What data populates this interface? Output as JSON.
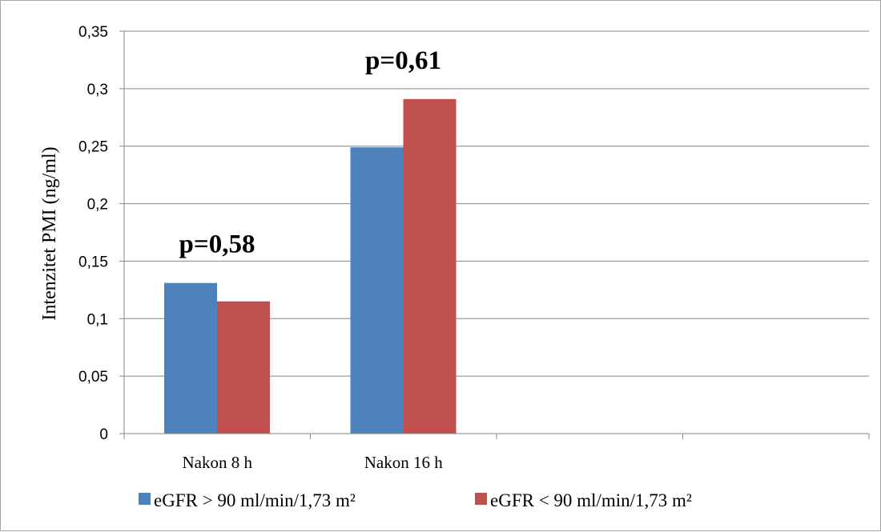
{
  "chart_data": {
    "type": "bar",
    "categories": [
      "Nakon 8 h",
      "Nakon 16 h",
      "",
      ""
    ],
    "series": [
      {
        "name": "eGFR > 90 ml/min/1,73 m²",
        "color": "#4f81bd",
        "values": [
          0.131,
          0.249,
          null,
          null
        ]
      },
      {
        "name": "eGFR < 90 ml/min/1,73 m²",
        "color": "#c0504d",
        "values": [
          0.115,
          0.291,
          null,
          null
        ]
      }
    ],
    "title": "",
    "xlabel": "",
    "ylabel": "Intenzitet PMI (ng/ml)",
    "ylim": [
      0,
      0.35
    ],
    "yticks": [
      0,
      0.05,
      0.1,
      0.15,
      0.2,
      0.25,
      0.3,
      0.35
    ],
    "ytick_labels": [
      "0",
      "0,05",
      "0,1",
      "0,15",
      "0,2",
      "0,25",
      "0,3",
      "0,35"
    ],
    "grid": true,
    "legend_position": "bottom",
    "annotations": [
      {
        "category": "Nakon 8 h",
        "text": "p=0,58"
      },
      {
        "category": "Nakon 16 h",
        "text": "p=0,61"
      }
    ]
  }
}
